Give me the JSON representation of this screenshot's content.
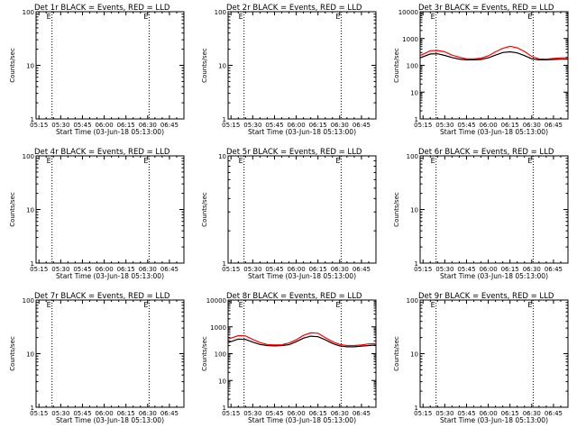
{
  "figure": {
    "background": "#ffffff",
    "colors": {
      "events": "#000000",
      "lld": "#ff0000",
      "axis": "#000000"
    }
  },
  "chart_data": [
    {
      "type": "line",
      "title": "Det 1r BLACK = Events, RED = LLD",
      "xlabel": "Start Time (03-Jun-18 05:13:00)",
      "ylabel": "Counts/sec",
      "xticks": [
        "05:15",
        "05:30",
        "05:45",
        "06:00",
        "06:15",
        "06:30",
        "06:45"
      ],
      "xlim": [
        "05:13",
        "06:55"
      ],
      "yscale": "log",
      "ylim": [
        1,
        100
      ],
      "yticks": [
        "1",
        "10",
        "100"
      ],
      "markers_at": [
        "05:24",
        "06:31"
      ],
      "series": []
    },
    {
      "type": "line",
      "title": "Det 2r BLACK = Events, RED = LLD",
      "xlabel": "Start Time (03-Jun-18 05:13:00)",
      "ylabel": "Counts/sec",
      "xticks": [
        "05:15",
        "05:30",
        "05:45",
        "06:00",
        "06:15",
        "06:30",
        "06:45"
      ],
      "xlim": [
        "05:13",
        "06:55"
      ],
      "yscale": "log",
      "ylim": [
        1,
        100
      ],
      "yticks": [
        "1",
        "10",
        "100"
      ],
      "markers_at": [
        "05:24",
        "06:31"
      ],
      "series": []
    },
    {
      "type": "line",
      "title": "Det 3r BLACK = Events, RED = LLD",
      "xlabel": "Start Time (03-Jun-18 05:13:00)",
      "ylabel": "Counts/sec",
      "xticks": [
        "05:15",
        "05:30",
        "05:45",
        "06:00",
        "06:15",
        "06:30",
        "06:45"
      ],
      "xlim": [
        "05:13",
        "06:55"
      ],
      "yscale": "log",
      "ylim": [
        1,
        10000
      ],
      "yticks": [
        "1",
        "10",
        "100",
        "1000",
        "10000"
      ],
      "markers_at": [
        "05:24",
        "06:31"
      ],
      "series": [
        {
          "color": "#000000",
          "x": [
            "05:13",
            "05:20",
            "05:25",
            "05:30",
            "05:35",
            "05:40",
            "05:45",
            "05:50",
            "05:55",
            "06:00",
            "06:05",
            "06:10",
            "06:15",
            "06:20",
            "06:25",
            "06:30",
            "06:35",
            "06:40",
            "06:45",
            "06:50",
            "06:55"
          ],
          "values": [
            190,
            265,
            270,
            235,
            195,
            170,
            160,
            160,
            165,
            190,
            240,
            300,
            320,
            290,
            230,
            175,
            160,
            160,
            165,
            170,
            170
          ]
        },
        {
          "color": "#ff0000",
          "x": [
            "05:13",
            "05:20",
            "05:25",
            "05:30",
            "05:35",
            "05:40",
            "05:45",
            "05:50",
            "05:55",
            "06:00",
            "06:05",
            "06:10",
            "06:15",
            "06:20",
            "06:25",
            "06:30",
            "06:35",
            "06:40",
            "06:45",
            "06:50",
            "06:55"
          ],
          "values": [
            230,
            350,
            360,
            320,
            240,
            200,
            175,
            175,
            185,
            225,
            320,
            430,
            510,
            450,
            330,
            215,
            175,
            170,
            180,
            190,
            190
          ]
        }
      ]
    },
    {
      "type": "line",
      "title": "Det 4r BLACK = Events, RED = LLD",
      "xlabel": "Start Time (03-Jun-18 05:13:00)",
      "ylabel": "Counts/sec",
      "xticks": [
        "05:15",
        "05:30",
        "05:45",
        "06:00",
        "06:15",
        "06:30",
        "06:45"
      ],
      "xlim": [
        "05:13",
        "06:55"
      ],
      "yscale": "log",
      "ylim": [
        1,
        100
      ],
      "yticks": [
        "1",
        "10",
        "100"
      ],
      "markers_at": [
        "05:24",
        "06:31"
      ],
      "series": []
    },
    {
      "type": "line",
      "title": "Det 5r BLACK = Events, RED = LLD",
      "xlabel": "Start Time (03-Jun-18 05:13:00)",
      "ylabel": "Counts/sec",
      "xticks": [
        "05:15",
        "05:30",
        "05:45",
        "06:00",
        "06:15",
        "06:30",
        "06:45"
      ],
      "xlim": [
        "05:13",
        "06:55"
      ],
      "yscale": "log",
      "ylim": [
        1,
        10
      ],
      "yticks": [
        "1",
        "10"
      ],
      "markers_at": [
        "05:24",
        "06:31"
      ],
      "series": []
    },
    {
      "type": "line",
      "title": "Det 6r BLACK = Events, RED = LLD",
      "xlabel": "Start Time (03-Jun-18 05:13:00)",
      "ylabel": "Counts/sec",
      "xticks": [
        "05:15",
        "05:30",
        "05:45",
        "06:00",
        "06:15",
        "06:30",
        "06:45"
      ],
      "xlim": [
        "05:13",
        "06:55"
      ],
      "yscale": "log",
      "ylim": [
        1,
        100
      ],
      "yticks": [
        "1",
        "10",
        "100"
      ],
      "markers_at": [
        "05:24",
        "06:31"
      ],
      "series": []
    },
    {
      "type": "line",
      "title": "Det 7r BLACK = Events, RED = LLD",
      "xlabel": "Start Time (03-Jun-18 05:13:00)",
      "ylabel": "Counts/sec",
      "xticks": [
        "05:15",
        "05:30",
        "05:45",
        "06:00",
        "06:15",
        "06:30",
        "06:45"
      ],
      "xlim": [
        "05:13",
        "06:55"
      ],
      "yscale": "log",
      "ylim": [
        1,
        100
      ],
      "yticks": [
        "1",
        "10",
        "100"
      ],
      "markers_at": [
        "05:24",
        "06:31"
      ],
      "series": []
    },
    {
      "type": "line",
      "title": "Det 8r BLACK = Events, RED = LLD",
      "xlabel": "Start Time (03-Jun-18 05:13:00)",
      "ylabel": "Counts/sec",
      "xticks": [
        "05:15",
        "05:30",
        "05:45",
        "06:00",
        "06:15",
        "06:30",
        "06:45"
      ],
      "xlim": [
        "05:13",
        "06:55"
      ],
      "yscale": "log",
      "ylim": [
        1,
        10000
      ],
      "yticks": [
        "1",
        "10",
        "100",
        "1000",
        "10000"
      ],
      "markers_at": [
        "05:24",
        "06:31"
      ],
      "series": [
        {
          "color": "#000000",
          "x": [
            "05:13",
            "05:20",
            "05:25",
            "05:30",
            "05:35",
            "05:40",
            "05:45",
            "05:50",
            "05:55",
            "06:00",
            "06:05",
            "06:10",
            "06:15",
            "06:20",
            "06:25",
            "06:30",
            "06:35",
            "06:40",
            "06:45",
            "06:50",
            "06:55"
          ],
          "values": [
            260,
            350,
            340,
            270,
            220,
            200,
            195,
            200,
            215,
            280,
            380,
            450,
            430,
            330,
            240,
            195,
            180,
            180,
            190,
            200,
            210
          ]
        },
        {
          "color": "#ff0000",
          "x": [
            "05:13",
            "05:20",
            "05:25",
            "05:30",
            "05:35",
            "05:40",
            "05:45",
            "05:50",
            "05:55",
            "06:00",
            "06:05",
            "06:10",
            "06:15",
            "06:20",
            "06:25",
            "06:30",
            "06:35",
            "06:40",
            "06:45",
            "06:50",
            "06:55"
          ],
          "values": [
            350,
            470,
            460,
            340,
            260,
            220,
            210,
            215,
            250,
            330,
            480,
            600,
            580,
            400,
            280,
            220,
            200,
            200,
            210,
            230,
            240
          ]
        }
      ]
    },
    {
      "type": "line",
      "title": "Det 9r BLACK = Events, RED = LLD",
      "xlabel": "Start Time (03-Jun-18 05:13:00)",
      "ylabel": "Counts/sec",
      "xticks": [
        "05:15",
        "05:30",
        "05:45",
        "06:00",
        "06:15",
        "06:30",
        "06:45"
      ],
      "xlim": [
        "05:13",
        "06:55"
      ],
      "yscale": "log",
      "ylim": [
        1,
        100
      ],
      "yticks": [
        "1",
        "10",
        "100"
      ],
      "markers_at": [
        "05:24",
        "06:31"
      ],
      "series": []
    }
  ]
}
